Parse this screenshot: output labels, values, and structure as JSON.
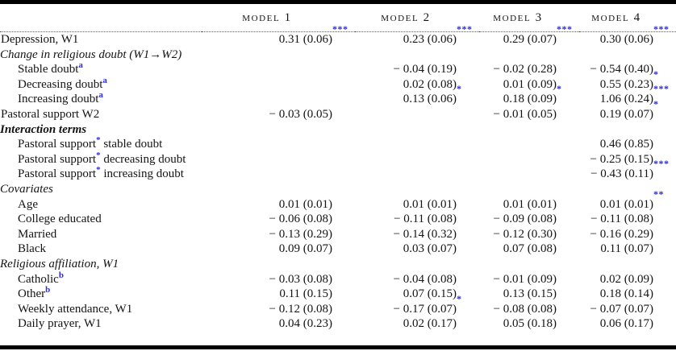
{
  "colors": {
    "accent_blue": "#2b2be0",
    "text": "#141414",
    "rule": "#000000"
  },
  "table": {
    "columns": [
      "model 1",
      "model 2",
      "model 3",
      "model 4"
    ],
    "rows": [
      {
        "kind": "data",
        "indent": 0,
        "label": "Depression, W1",
        "values": [
          [
            "0.31 (0.06)",
            "***"
          ],
          [
            "0.23 (0.06)",
            "***"
          ],
          [
            "0.29 (0.07)",
            "***"
          ],
          [
            "0.30 (0.06)",
            "***"
          ]
        ]
      },
      {
        "kind": "section",
        "bold": false,
        "label": "Change in religious doubt (W1→W2)"
      },
      {
        "kind": "data",
        "indent": 1,
        "label": "Stable doubt",
        "label_sup": "a",
        "values": [
          [
            "",
            ""
          ],
          [
            "− 0.04 (0.19)",
            ""
          ],
          [
            "− 0.02 (0.28)",
            ""
          ],
          [
            "− 0.54 (0.40)",
            ""
          ]
        ]
      },
      {
        "kind": "data",
        "indent": 1,
        "label": "Decreasing doubt",
        "label_sup": "a",
        "values": [
          [
            "",
            ""
          ],
          [
            "0.02 (0.08)",
            ""
          ],
          [
            "0.01 (0.09)",
            ""
          ],
          [
            "0.55 (0.23)",
            "*"
          ]
        ]
      },
      {
        "kind": "data",
        "indent": 1,
        "label": "Increasing doubt",
        "label_sup": "a",
        "values": [
          [
            "",
            ""
          ],
          [
            "0.13 (0.06)",
            "*"
          ],
          [
            "0.18 (0.09)",
            "*"
          ],
          [
            "1.06 (0.24)",
            "***"
          ]
        ]
      },
      {
        "kind": "data",
        "indent": 0,
        "label": "Pastoral support W2",
        "values": [
          [
            "− 0.03 (0.05)",
            ""
          ],
          [
            "",
            ""
          ],
          [
            "− 0.01 (0.05)",
            ""
          ],
          [
            "0.19 (0.07)",
            "*"
          ]
        ]
      },
      {
        "kind": "section",
        "bold": true,
        "label": "Interaction terms"
      },
      {
        "kind": "data",
        "indent": 1,
        "label_pre": "Pastoral support",
        "label_star": "*",
        "label_post": " stable doubt",
        "values": [
          [
            "",
            ""
          ],
          [
            "",
            ""
          ],
          [
            "",
            ""
          ],
          [
            "0.46 (0.85)",
            ""
          ]
        ]
      },
      {
        "kind": "data",
        "indent": 1,
        "label_pre": "Pastoral support",
        "label_star": "*",
        "label_post": " decreasing doubt",
        "values": [
          [
            "",
            ""
          ],
          [
            "",
            ""
          ],
          [
            "",
            ""
          ],
          [
            "− 0.25 (0.15)",
            ""
          ]
        ]
      },
      {
        "kind": "data",
        "indent": 1,
        "label_pre": "Pastoral support",
        "label_star": "*",
        "label_post": " increasing doubt",
        "values": [
          [
            "",
            ""
          ],
          [
            "",
            ""
          ],
          [
            "",
            ""
          ],
          [
            "− 0.43 (0.11)",
            "***"
          ]
        ]
      },
      {
        "kind": "section",
        "bold": false,
        "label": "Covariates"
      },
      {
        "kind": "data",
        "indent": 1,
        "label": "Age",
        "values": [
          [
            "0.01 (0.01)",
            ""
          ],
          [
            "0.01 (0.01)",
            ""
          ],
          [
            "0.01 (0.01)",
            ""
          ],
          [
            "0.01 (0.01)",
            "**"
          ]
        ]
      },
      {
        "kind": "data",
        "indent": 1,
        "label": "College educated",
        "values": [
          [
            "− 0.06 (0.08)",
            ""
          ],
          [
            "− 0.11 (0.08)",
            ""
          ],
          [
            "− 0.09 (0.08)",
            ""
          ],
          [
            "− 0.11 (0.08)",
            ""
          ]
        ]
      },
      {
        "kind": "data",
        "indent": 1,
        "label": "Married",
        "values": [
          [
            "− 0.13 (0.29)",
            ""
          ],
          [
            "− 0.14 (0.32)",
            ""
          ],
          [
            "− 0.12 (0.30)",
            ""
          ],
          [
            "− 0.16 (0.29)",
            ""
          ]
        ]
      },
      {
        "kind": "data",
        "indent": 1,
        "label": "Black",
        "values": [
          [
            "0.09 (0.07)",
            ""
          ],
          [
            "0.03 (0.07)",
            ""
          ],
          [
            "0.07 (0.08)",
            ""
          ],
          [
            "0.11 (0.07)",
            ""
          ]
        ]
      },
      {
        "kind": "section",
        "bold": false,
        "label": "Religious affiliation, W1"
      },
      {
        "kind": "data",
        "indent": 1,
        "label": "Catholic",
        "label_sup": "b",
        "values": [
          [
            "− 0.03 (0.08)",
            ""
          ],
          [
            "− 0.04 (0.08)",
            ""
          ],
          [
            "− 0.01 (0.09)",
            ""
          ],
          [
            "0.02 (0.09)",
            ""
          ]
        ]
      },
      {
        "kind": "data",
        "indent": 1,
        "label": "Other",
        "label_sup": "b",
        "values": [
          [
            "0.11 (0.15)",
            ""
          ],
          [
            "0.07 (0.15)",
            ""
          ],
          [
            "0.13 (0.15)",
            ""
          ],
          [
            "0.18 (0.14)",
            ""
          ]
        ]
      },
      {
        "kind": "data",
        "indent": 1,
        "label": "Weekly attendance, W1",
        "values": [
          [
            "− 0.12 (0.08)",
            ""
          ],
          [
            "− 0.17 (0.07)",
            "*"
          ],
          [
            "− 0.08 (0.08)",
            ""
          ],
          [
            "− 0.07 (0.07)",
            ""
          ]
        ]
      },
      {
        "kind": "data",
        "indent": 1,
        "label": "Daily prayer, W1",
        "values": [
          [
            "0.04 (0.23)",
            ""
          ],
          [
            "0.02 (0.17)",
            ""
          ],
          [
            "0.05 (0.18)",
            ""
          ],
          [
            "0.06 (0.17)",
            ""
          ]
        ]
      }
    ]
  }
}
